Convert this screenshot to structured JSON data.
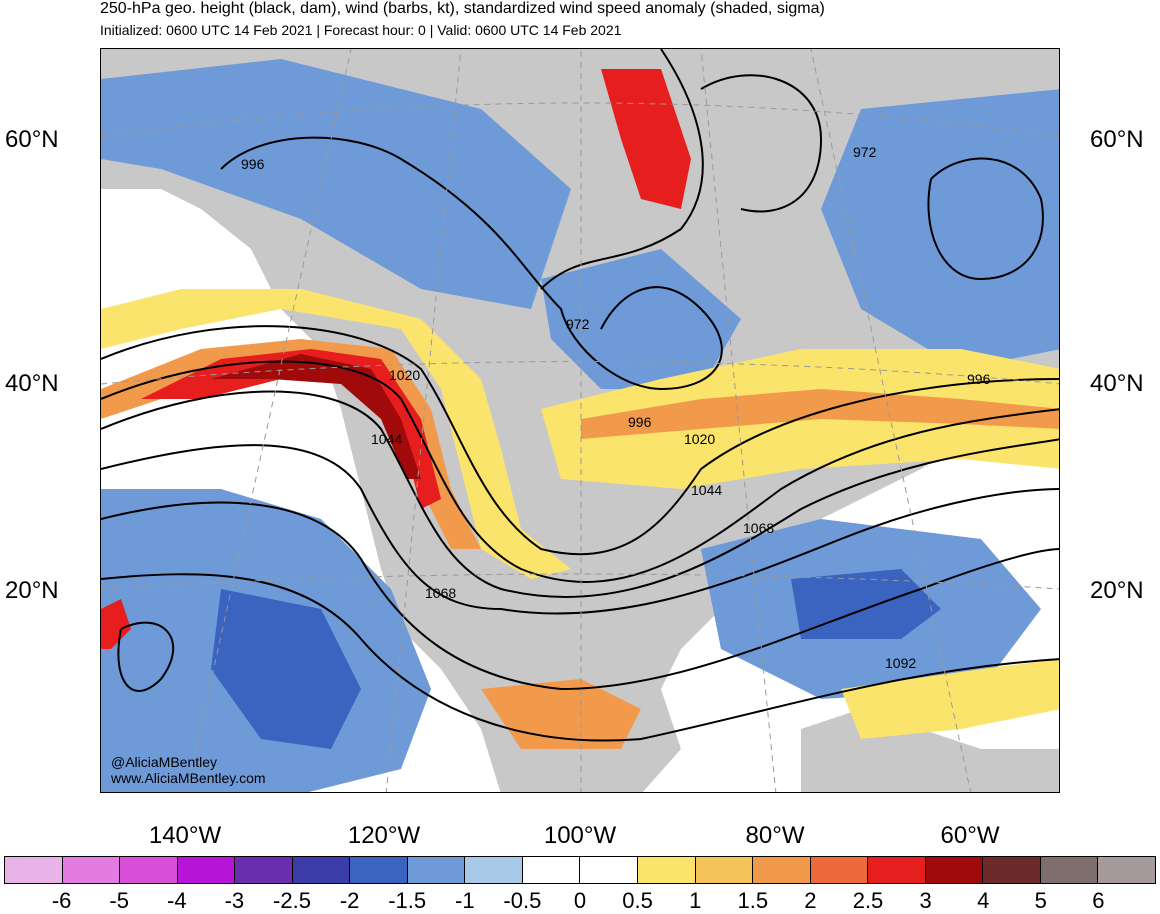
{
  "header": {
    "title": "250-hPa geo. height (black, dam), wind (barbs, kt), standardized wind speed anomaly (shaded, sigma)",
    "subtitle": "Initialized: 0600 UTC 14 Feb 2021 | Forecast hour: 0 | Valid: 0600 UTC 14 Feb 2021"
  },
  "map": {
    "latitude_labels": [
      "60°N",
      "40°N",
      "20°N"
    ],
    "longitude_labels": [
      "140°W",
      "120°W",
      "100°W",
      "80°W",
      "60°W"
    ],
    "contour_labels": [
      "996",
      "972",
      "972",
      "996",
      "1020",
      "1044",
      "996",
      "1020",
      "1044",
      "1068",
      "1068",
      "1092"
    ],
    "credit_handle": "@AliciaMBentley",
    "credit_url": "www.AliciaMBentley.com",
    "colors": {
      "land": "#c8c8c8",
      "contour": "#000000",
      "coastline": "#555555"
    }
  },
  "colorbar": {
    "ticks": [
      "-6",
      "-5",
      "-4",
      "-3",
      "-2.5",
      "-2",
      "-1.5",
      "-1",
      "-0.5",
      "0",
      "0.5",
      "1",
      "1.5",
      "2",
      "2.5",
      "3",
      "4",
      "5",
      "6"
    ],
    "colors": [
      "#e8b4e8",
      "#e27ce2",
      "#d74ed7",
      "#b614d6",
      "#6a2dae",
      "#3c3ca8",
      "#3a64c0",
      "#6f9ad8",
      "#a9c9e8",
      "#ffffff",
      "#ffffff",
      "#fbe46c",
      "#f5c35a",
      "#f29a4c",
      "#ee6a3a",
      "#e61e1e",
      "#a10a0a",
      "#6e2a2a",
      "#7e6e6e",
      "#a79a9a"
    ]
  }
}
